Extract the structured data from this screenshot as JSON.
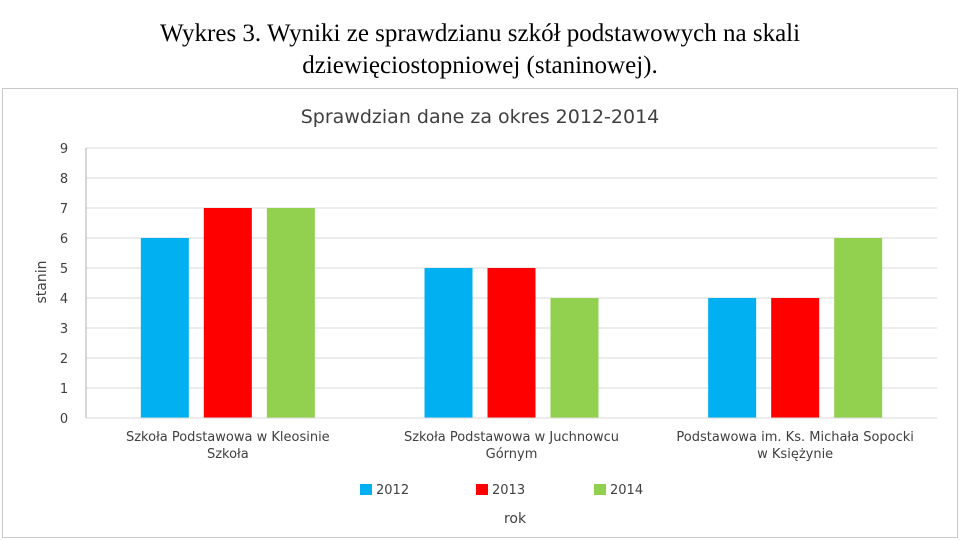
{
  "slide": {
    "title_line1": "Wykres 3. Wyniki ze sprawdzianu szkół podstawowych na skali",
    "title_line2": "dziewięciostopniowej (staninowej)."
  },
  "chart_data": {
    "type": "bar",
    "title": "Sprawdzian dane za okres 2012-2014",
    "xlabel": "rok",
    "ylabel": "stanin",
    "ylim": [
      0,
      9
    ],
    "yticks": [
      "0",
      "1",
      "2",
      "3",
      "4",
      "5",
      "6",
      "7",
      "8",
      "9"
    ],
    "grid": true,
    "legend_position": "bottom",
    "categories": [
      [
        "Szkoła Podstawowa w Kleosinie",
        "Szkoła"
      ],
      [
        "Szkoła Podstawowa w Juchnowcu",
        "Górnym"
      ],
      [
        "Podstawowa im. Ks. Michała Sopocki",
        "w Księżynie"
      ]
    ],
    "series": [
      {
        "name": "2012",
        "color": "#00b0f0",
        "values": [
          6,
          5,
          4
        ]
      },
      {
        "name": "2013",
        "color": "#ff0000",
        "values": [
          7,
          5,
          4
        ]
      },
      {
        "name": "2014",
        "color": "#92d050",
        "values": [
          7,
          4,
          6
        ]
      }
    ]
  }
}
